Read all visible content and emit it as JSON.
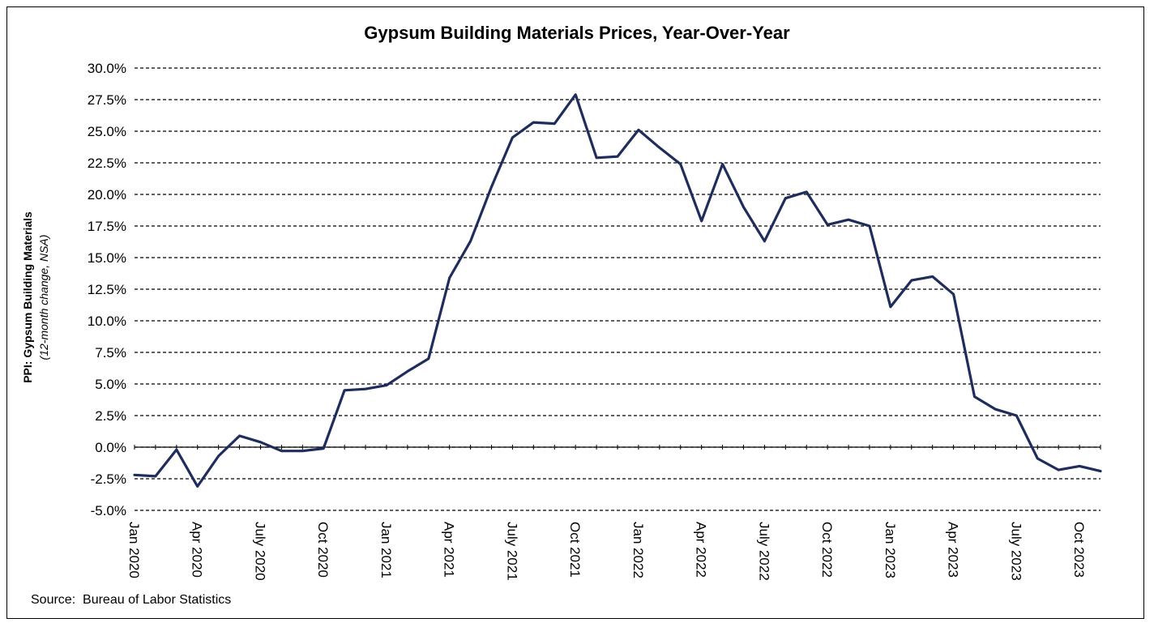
{
  "chart_data": {
    "type": "line",
    "title": "Gypsum Building Materials Prices, Year-Over-Year",
    "ylabel": "PPI: Gypsum Building Materials",
    "ylabel_sub": "(12-month change, NSA)",
    "xlabel": "",
    "source": "Source:  Bureau of Labor Statistics",
    "ylim": [
      -5.0,
      30.0
    ],
    "yticks": [
      "-5.0%",
      "-2.5%",
      "0.0%",
      "2.5%",
      "5.0%",
      "7.5%",
      "10.0%",
      "12.5%",
      "15.0%",
      "17.5%",
      "20.0%",
      "22.5%",
      "25.0%",
      "27.5%",
      "30.0%"
    ],
    "grid": "horizontal dashed",
    "line_color": "#1f2d5c",
    "xtick_labels": [
      "Jan 2020",
      "Apr 2020",
      "July 2020",
      "Oct 2020",
      "Jan 2021",
      "Apr 2021",
      "July 2021",
      "Oct 2021",
      "Jan 2022",
      "Apr 2022",
      "July 2022",
      "Oct 2022",
      "Jan 2023",
      "Apr 2023",
      "July 2023",
      "Oct 2023"
    ],
    "x": [
      "2020-01",
      "2020-02",
      "2020-03",
      "2020-04",
      "2020-05",
      "2020-06",
      "2020-07",
      "2020-08",
      "2020-09",
      "2020-10",
      "2020-11",
      "2020-12",
      "2021-01",
      "2021-02",
      "2021-03",
      "2021-04",
      "2021-05",
      "2021-06",
      "2021-07",
      "2021-08",
      "2021-09",
      "2021-10",
      "2021-11",
      "2021-12",
      "2022-01",
      "2022-02",
      "2022-03",
      "2022-04",
      "2022-05",
      "2022-06",
      "2022-07",
      "2022-08",
      "2022-09",
      "2022-10",
      "2022-11",
      "2022-12",
      "2023-01",
      "2023-02",
      "2023-03",
      "2023-04",
      "2023-05",
      "2023-06",
      "2023-07",
      "2023-08",
      "2023-09",
      "2023-10",
      "2023-11"
    ],
    "series": [
      {
        "values": [
          -2.2,
          -2.3,
          -0.2,
          -3.1,
          -0.7,
          0.9,
          0.4,
          -0.3,
          -0.3,
          -0.1,
          4.5,
          4.6,
          4.9,
          6.0,
          7.0,
          13.4,
          16.3,
          20.6,
          24.5,
          25.7,
          25.6,
          27.9,
          22.9,
          23.0,
          25.1,
          23.7,
          22.4,
          17.9,
          22.4,
          19.0,
          16.3,
          19.7,
          20.2,
          17.6,
          18.0,
          17.5,
          11.1,
          13.2,
          13.5,
          12.1,
          4.0,
          3.0,
          2.5,
          -0.9,
          -1.8,
          -1.5,
          -1.9
        ]
      }
    ]
  }
}
